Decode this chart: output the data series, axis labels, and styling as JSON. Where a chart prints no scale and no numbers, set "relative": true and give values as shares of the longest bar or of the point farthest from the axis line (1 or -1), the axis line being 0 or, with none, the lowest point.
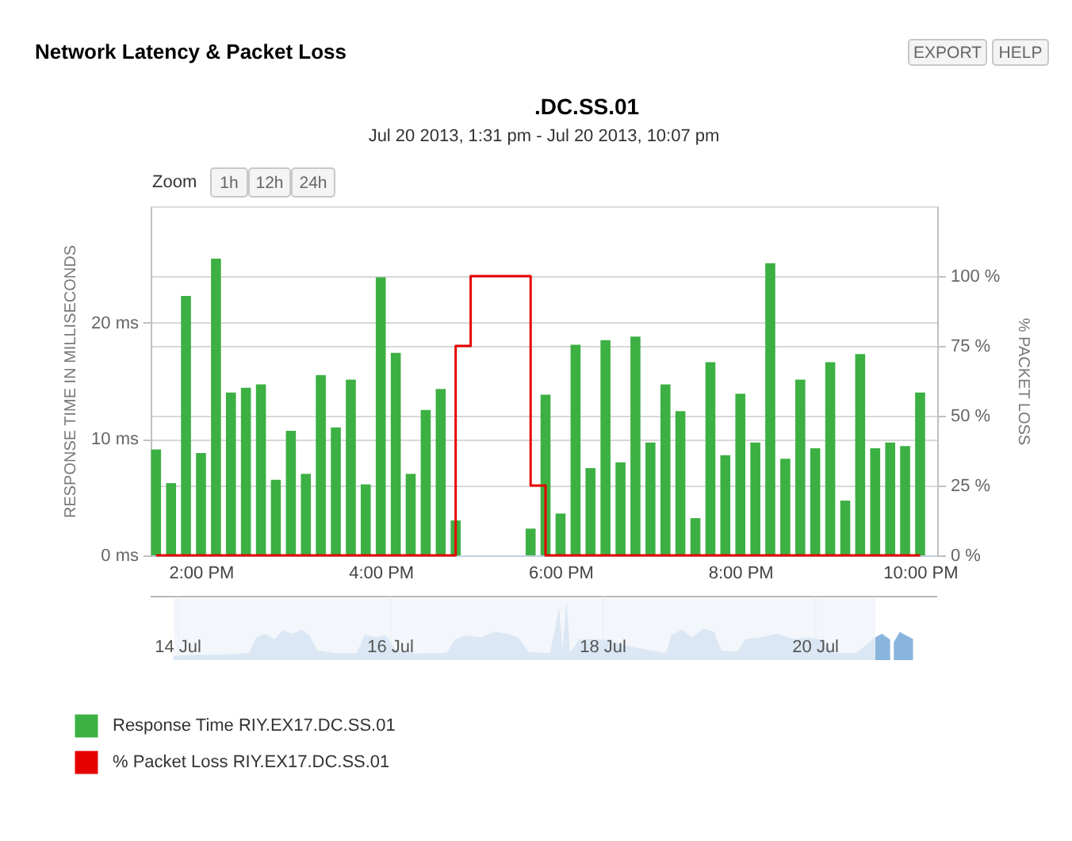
{
  "chart_data": [
    {
      "type": "bar",
      "title": "Network Latency & Packet Loss",
      "subtitle": "Jul 20 2013, 1:31 pm - Jul 20 2013, 10:07 pm",
      "ylabel": "RESPONSE TIME IN MILLISECONDS",
      "y2label": "% PACKET LOSS",
      "x": [
        13.5,
        13.667,
        13.833,
        14,
        14.167,
        14.333,
        14.5,
        14.667,
        14.833,
        15,
        15.167,
        15.333,
        15.5,
        15.667,
        15.833,
        16,
        16.167,
        16.333,
        16.5,
        16.667,
        16.833,
        17,
        17.167,
        17.333,
        17.5,
        17.667,
        17.833,
        18,
        18.167,
        18.333,
        18.5,
        18.667,
        18.833,
        19,
        19.167,
        19.333,
        19.5,
        19.667,
        19.833,
        20,
        20.167,
        20.333,
        20.5,
        20.667,
        20.833,
        21,
        21.167,
        21.333,
        21.5,
        21.667,
        21.833,
        22
      ],
      "xlim": [
        13.44,
        22.19
      ],
      "xticks": [
        {
          "value": 14,
          "label": "2:00 PM"
        },
        {
          "value": 16,
          "label": "4:00 PM"
        },
        {
          "value": 18,
          "label": "6:00 PM"
        },
        {
          "value": 20,
          "label": "8:00 PM"
        },
        {
          "value": 22,
          "label": "10:00 PM"
        }
      ],
      "ylim": [
        0,
        30
      ],
      "yticks": [
        {
          "value": 0,
          "label": "0 ms"
        },
        {
          "value": 10,
          "label": "10 ms"
        },
        {
          "value": 20,
          "label": "20 ms"
        }
      ],
      "y2lim": [
        0,
        125
      ],
      "y2ticks": [
        {
          "value": 0,
          "label": "0 %"
        },
        {
          "value": 25,
          "label": "25 %"
        },
        {
          "value": 50,
          "label": "50 %"
        },
        {
          "value": 75,
          "label": "75 %"
        },
        {
          "value": 100,
          "label": "100 %"
        }
      ],
      "series": [
        {
          "name": "Response Time RIY.EX17.DC.SS.01",
          "color": "#3cb043",
          "values": [
            9.1,
            6.2,
            22.3,
            8.8,
            25.5,
            14.0,
            14.4,
            14.7,
            6.5,
            10.7,
            7.0,
            15.5,
            11.0,
            15.1,
            6.1,
            23.9,
            17.4,
            7.0,
            12.5,
            14.3,
            3.0,
            null,
            null,
            null,
            null,
            2.3,
            13.8,
            3.6,
            18.1,
            7.5,
            18.5,
            8.0,
            18.8,
            9.7,
            14.7,
            12.4,
            3.2,
            16.6,
            8.6,
            13.9,
            9.7,
            25.1,
            8.3,
            15.1,
            9.2,
            16.6,
            4.7,
            17.3,
            9.2,
            9.7,
            9.4,
            14.0
          ]
        },
        {
          "name": "% Packet Loss RIY.EX17.DC.SS.01",
          "type": "step",
          "axis": "y2",
          "color": "#e60000",
          "values": [
            0,
            0,
            0,
            0,
            0,
            0,
            0,
            0,
            0,
            0,
            0,
            0,
            0,
            0,
            0,
            0,
            0,
            0,
            0,
            0,
            75,
            100,
            100,
            100,
            100,
            25,
            0,
            0,
            0,
            0,
            0,
            0,
            0,
            0,
            0,
            0,
            0,
            0,
            0,
            0,
            0,
            0,
            0,
            0,
            0,
            0,
            0,
            0,
            0,
            0,
            0,
            0
          ]
        }
      ],
      "grid": "y",
      "legend": "bottom left",
      "annotations": [
        ".DC.SS.01",
        "EXPORT",
        "HELP",
        "Zoom",
        "1h",
        "12h",
        "24h"
      ]
    },
    {
      "type": "area",
      "relative": true,
      "color": "#89b4de",
      "x": [
        "2013-07-13T23:00",
        "2013-07-14T04:00",
        "2013-07-14T10:00",
        "2013-07-14T16:00",
        "2013-07-14T17:40",
        "2013-07-14T19:30",
        "2013-07-14T21:50",
        "2013-07-14T23:40",
        "2013-07-15T02:00",
        "2013-07-15T03:50",
        "2013-07-15T05:40",
        "2013-07-15T07:25",
        "2013-07-15T12:10",
        "2013-07-15T16:20",
        "2013-07-15T18:10",
        "2013-07-15T20:30",
        "2013-07-15T22:55",
        "2013-07-16T01:20",
        "2013-07-16T06:05",
        "2013-07-16T12:40",
        "2013-07-16T14:30",
        "2013-07-16T16:50",
        "2013-07-16T20:25",
        "2013-07-16T23:25",
        "2013-07-17T02:25",
        "2013-07-17T04:50",
        "2013-07-17T07:10",
        "2013-07-17T10:45",
        "2013-07-17T12:00",
        "2013-07-17T14:05",
        "2013-07-17T14:50",
        "2013-07-17T15:45",
        "2013-07-17T16:30",
        "2013-07-17T18:30",
        "2013-07-17T21:30",
        "2013-07-18T00:30",
        "2013-07-18T04:40",
        "2013-07-18T09:30",
        "2013-07-18T14:15",
        "2013-07-18T15:25",
        "2013-07-18T17:50",
        "2013-07-18T20:10",
        "2013-07-18T22:35",
        "2013-07-19T01:00",
        "2013-07-19T02:45",
        "2013-07-19T06:20",
        "2013-07-19T08:10",
        "2013-07-19T11:45",
        "2013-07-19T15:20",
        "2013-07-19T18:55",
        "2013-07-19T22:30",
        "2013-07-20T00:50",
        "2013-07-20T04:25",
        "2013-07-20T09:10",
        "2013-07-20T13:30",
        "2013-07-20T15:00",
        "2013-07-20T16:50",
        "2013-07-20T17:20",
        "2013-07-20T17:40",
        "2013-07-20T19:00",
        "2013-07-20T20:30",
        "2013-07-20T22:00"
      ],
      "values": [
        0.07,
        0.09,
        0.09,
        0.12,
        0.38,
        0.44,
        0.35,
        0.5,
        0.44,
        0.51,
        0.41,
        0.16,
        0.11,
        0.12,
        0.42,
        0.38,
        0.41,
        0.16,
        0.11,
        0.12,
        0.34,
        0.41,
        0.38,
        0.47,
        0.44,
        0.38,
        0.14,
        0.12,
        0.12,
        0.87,
        0.16,
        1,
        0.12,
        0.34,
        0.35,
        0.34,
        0.25,
        0.18,
        0.12,
        0.42,
        0.51,
        0.38,
        0.53,
        0.47,
        0.16,
        0.14,
        0.35,
        0.38,
        0.44,
        0.35,
        0.38,
        0.34,
        0.12,
        0.12,
        0.38,
        0.44,
        0.34,
        null,
        0.3,
        0.47,
        0.41,
        0.35
      ],
      "xlim": [
        "2013-07-13T17:48",
        "2013-07-21T03:28"
      ],
      "xticks": [
        {
          "value": "2013-07-14",
          "label": "14 Jul"
        },
        {
          "value": "2013-07-16",
          "label": "16 Jul"
        },
        {
          "value": "2013-07-18",
          "label": "18 Jul"
        },
        {
          "value": "2013-07-20",
          "label": "20 Jul"
        }
      ],
      "grid": "x",
      "bands": [
        {
          "axis": "x",
          "from": "2013-07-13T23:00",
          "to": "2013-07-20T13:31",
          "color": "#f0f4f9"
        }
      ]
    }
  ]
}
